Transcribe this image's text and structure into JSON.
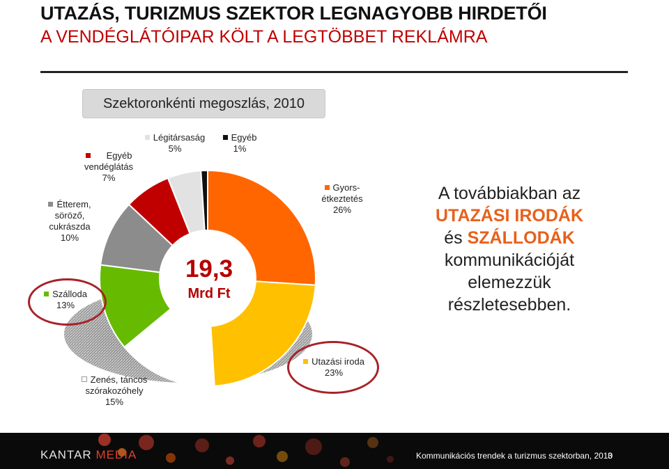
{
  "slide": {
    "title": "UTAZÁS, TURIZMUS SZEKTOR LEGNAGYOBB HIRDETŐI",
    "subtitle": "A VENDÉGLÁTÓIPAR KÖLT A LEGTÖBBET REKLÁMRA",
    "chart_heading": "Szektoronkénti megoszlás, 2010",
    "center_value": "19,3",
    "center_unit": "Mrd Ft",
    "note": {
      "line1": "A továbbiakban az",
      "hl1": "UTAZÁSI IRODÁK",
      "line3a": "és ",
      "hl2": "SZÁLLODÁK",
      "line4": "kommunikációját",
      "line5": "elemezzük",
      "line6": "részletesebben."
    },
    "footer": {
      "logo_left": "KANTAR",
      "logo_right": "MEDIA",
      "text": "Kommunikációs  trendek a turizmus szektorban, 2010",
      "page": "3"
    }
  },
  "labels": {
    "gyors1": "Gyors-",
    "gyors2": "étkeztetés",
    "gyors_pct": "26%",
    "utazasi": "Utazási iroda",
    "utazasi_pct": "23%",
    "zenes1": "Zenés, táncos",
    "zenes2": "szórakozóhely",
    "zenes_pct": "15%",
    "szalloda": "Szálloda",
    "szalloda_pct": "13%",
    "etterem1": "Étterem,",
    "etterem2": "söröző,",
    "etterem3": "cukrászda",
    "etterem_pct": "10%",
    "egyebv1": "Egyéb",
    "egyebv2": "vendéglátás",
    "egyebv_pct": "7%",
    "legi": "Légitársaság",
    "legi_pct": "5%",
    "egyeb": "Egyéb",
    "egyeb_pct": "1%"
  },
  "chart_data": {
    "type": "pie",
    "title": "Szektoronkénti megoszlás, 2010",
    "total_label": "19,3 Mrd Ft",
    "slices": [
      {
        "name": "Gyorsétkeztetés",
        "value": 26,
        "color": "#ff6600"
      },
      {
        "name": "Utazási iroda",
        "value": 23,
        "color": "#ffc000"
      },
      {
        "name": "Zenés, táncos szórakozóhely",
        "value": 15,
        "color": "#ffffff"
      },
      {
        "name": "Szálloda",
        "value": 13,
        "color": "#66bb00"
      },
      {
        "name": "Étterem, söröző, cukrászda",
        "value": 10,
        "color": "#8c8c8c"
      },
      {
        "name": "Egyéb vendéglátás",
        "value": 7,
        "color": "#c00000"
      },
      {
        "name": "Légitársaság",
        "value": 5,
        "color": "#e2e2e2"
      },
      {
        "name": "Egyéb",
        "value": 1,
        "color": "#111111"
      }
    ]
  }
}
